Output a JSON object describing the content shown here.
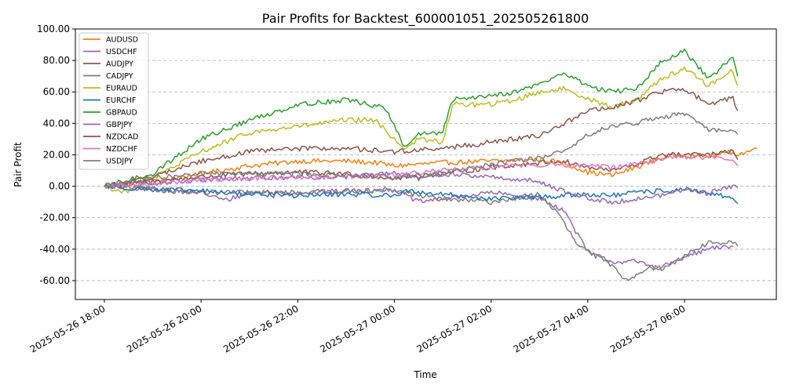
{
  "chart_data": {
    "type": "line",
    "title": "Pair Profits for Backtest_600001051_202505261800",
    "xlabel": "Time",
    "ylabel": "Pair Profit",
    "ylim": [
      -72,
      100
    ],
    "xlim_hours": [
      -0.6,
      13.9
    ],
    "grid": "horizontal dashed",
    "legend_position": "top-left",
    "y_ticks": [
      -60,
      -40,
      -20,
      0,
      20,
      40,
      60,
      80,
      100
    ],
    "y_tick_labels": [
      "-60.00",
      "-40.00",
      "-20.00",
      "0.00",
      "20.00",
      "40.00",
      "60.00",
      "80.00",
      "100.00"
    ],
    "x_ticks_hours": [
      0,
      2,
      4,
      6,
      8,
      10,
      12
    ],
    "x_tick_labels": [
      "2025-05-26 18:00",
      "2025-05-26 20:00",
      "2025-05-26 22:00",
      "2025-05-27 00:00",
      "2025-05-27 02:00",
      "2025-05-27 04:00",
      "2025-05-27 06:00"
    ],
    "x_unit": "hours since 2025-05-26 18:00",
    "series": [
      {
        "name": "AUDUSD",
        "color": "#ff7f0e",
        "points": [
          [
            0,
            0
          ],
          [
            1,
            3
          ],
          [
            2,
            8
          ],
          [
            3,
            13
          ],
          [
            4,
            16
          ],
          [
            5,
            16
          ],
          [
            5.6,
            15
          ],
          [
            6,
            13
          ],
          [
            7,
            15
          ],
          [
            8,
            16
          ],
          [
            9,
            17
          ],
          [
            9.5,
            15
          ],
          [
            10,
            9
          ],
          [
            10.5,
            7
          ],
          [
            11,
            12
          ],
          [
            11.5,
            18
          ],
          [
            12,
            20
          ],
          [
            12.5,
            19
          ],
          [
            13,
            22
          ],
          [
            13.5,
            24
          ],
          [
            13.1,
            20
          ]
        ]
      },
      {
        "name": "USDCHF",
        "color": "#9467bd",
        "points": [
          [
            0,
            0
          ],
          [
            1,
            -2
          ],
          [
            2,
            -4
          ],
          [
            2.5,
            -9
          ],
          [
            3,
            -4
          ],
          [
            4,
            -4
          ],
          [
            5,
            -3
          ],
          [
            6,
            -2
          ],
          [
            6.5,
            -10
          ],
          [
            7,
            -8
          ],
          [
            8,
            -4
          ],
          [
            9,
            -8
          ],
          [
            9.5,
            -15
          ],
          [
            10,
            -42
          ],
          [
            10.5,
            -48
          ],
          [
            11,
            -48
          ],
          [
            11.5,
            -52
          ],
          [
            12,
            -45
          ],
          [
            12.5,
            -40
          ],
          [
            13,
            -38
          ]
        ]
      },
      {
        "name": "AUDJPY",
        "color": "#8c564b",
        "points": [
          [
            0,
            0
          ],
          [
            1,
            3
          ],
          [
            2,
            6
          ],
          [
            3,
            8
          ],
          [
            4,
            9
          ],
          [
            5,
            8
          ],
          [
            6,
            5
          ],
          [
            7,
            8
          ],
          [
            8,
            12
          ],
          [
            9,
            15
          ],
          [
            9.5,
            16
          ],
          [
            10,
            12
          ],
          [
            10.5,
            10
          ],
          [
            11,
            14
          ],
          [
            11.5,
            20
          ],
          [
            12,
            20
          ],
          [
            12.5,
            20
          ],
          [
            13,
            22
          ],
          [
            13.1,
            17
          ]
        ]
      },
      {
        "name": "CADJPY",
        "color": "#7f7f7f",
        "points": [
          [
            0,
            0
          ],
          [
            1,
            -2
          ],
          [
            2,
            -4
          ],
          [
            3,
            -4
          ],
          [
            4,
            -4
          ],
          [
            5,
            -3
          ],
          [
            6,
            -3
          ],
          [
            7,
            -8
          ],
          [
            8,
            -10
          ],
          [
            9,
            -5
          ],
          [
            9.4,
            -18
          ],
          [
            9.8,
            -38
          ],
          [
            10.2,
            -45
          ],
          [
            10.5,
            -50
          ],
          [
            10.8,
            -60
          ],
          [
            11.2,
            -52
          ],
          [
            11.6,
            -52
          ],
          [
            12,
            -44
          ],
          [
            12.5,
            -36
          ],
          [
            13,
            -36
          ],
          [
            13.1,
            -38
          ]
        ]
      },
      {
        "name": "EURAUD",
        "color": "#bcbd22",
        "points": [
          [
            0,
            0
          ],
          [
            0.4,
            -4
          ],
          [
            1,
            5
          ],
          [
            2,
            22
          ],
          [
            3,
            34
          ],
          [
            4,
            38
          ],
          [
            5,
            42
          ],
          [
            5.6,
            42
          ],
          [
            6,
            30
          ],
          [
            6.2,
            24
          ],
          [
            6.5,
            30
          ],
          [
            7,
            28
          ],
          [
            7.2,
            52
          ],
          [
            8,
            52
          ],
          [
            8.5,
            55
          ],
          [
            9,
            60
          ],
          [
            9.5,
            62
          ],
          [
            10,
            56
          ],
          [
            10.5,
            50
          ],
          [
            11,
            55
          ],
          [
            11.5,
            68
          ],
          [
            12,
            75
          ],
          [
            12.5,
            64
          ],
          [
            13,
            74
          ],
          [
            13.1,
            64
          ]
        ]
      },
      {
        "name": "EURCHF",
        "color": "#1f77b4",
        "points": [
          [
            0,
            0
          ],
          [
            1,
            -2
          ],
          [
            2,
            -3
          ],
          [
            3,
            -5
          ],
          [
            4,
            -6
          ],
          [
            5,
            -5
          ],
          [
            6,
            -6
          ],
          [
            6.2,
            -3
          ],
          [
            7,
            -5
          ],
          [
            8,
            -8
          ],
          [
            9,
            -7
          ],
          [
            10,
            -5
          ],
          [
            10.5,
            -6
          ],
          [
            11,
            -4
          ],
          [
            11.5,
            -3
          ],
          [
            12,
            -2
          ],
          [
            12.5,
            -5
          ],
          [
            13,
            -7
          ],
          [
            13.1,
            -11
          ]
        ]
      },
      {
        "name": "GBPAUD",
        "color": "#2ca02c",
        "points": [
          [
            0,
            0
          ],
          [
            1,
            8
          ],
          [
            2,
            30
          ],
          [
            3,
            42
          ],
          [
            4,
            52
          ],
          [
            5,
            55
          ],
          [
            5.8,
            50
          ],
          [
            6,
            38
          ],
          [
            6.2,
            25
          ],
          [
            6.5,
            33
          ],
          [
            7,
            34
          ],
          [
            7.2,
            55
          ],
          [
            8,
            58
          ],
          [
            8.5,
            60
          ],
          [
            9,
            65
          ],
          [
            9.5,
            72
          ],
          [
            10,
            64
          ],
          [
            10.5,
            60
          ],
          [
            11,
            62
          ],
          [
            11.5,
            78
          ],
          [
            12,
            86
          ],
          [
            12.5,
            68
          ],
          [
            13,
            82
          ],
          [
            13.1,
            70
          ]
        ]
      },
      {
        "name": "GBPJPY",
        "color": "#9467bd",
        "points": [
          [
            0,
            0
          ],
          [
            1,
            2
          ],
          [
            2,
            4
          ],
          [
            3,
            5
          ],
          [
            4,
            6
          ],
          [
            5,
            6
          ],
          [
            6,
            8
          ],
          [
            6.5,
            5
          ],
          [
            7,
            8
          ],
          [
            8,
            6
          ],
          [
            9,
            3
          ],
          [
            9.5,
            -3
          ],
          [
            10,
            -8
          ],
          [
            10.5,
            -10
          ],
          [
            11,
            -8
          ],
          [
            11.5,
            -6
          ],
          [
            12,
            -2
          ],
          [
            12.5,
            -4
          ],
          [
            13,
            0
          ],
          [
            13.1,
            -1
          ]
        ]
      },
      {
        "name": "NZDCAD",
        "color": "#8c564b",
        "points": [
          [
            0,
            0
          ],
          [
            1,
            6
          ],
          [
            2,
            16
          ],
          [
            3,
            22
          ],
          [
            4,
            24
          ],
          [
            5,
            24
          ],
          [
            6,
            22
          ],
          [
            7,
            24
          ],
          [
            8,
            28
          ],
          [
            9,
            32
          ],
          [
            9.5,
            40
          ],
          [
            10,
            48
          ],
          [
            10.5,
            50
          ],
          [
            11,
            54
          ],
          [
            11.5,
            60
          ],
          [
            12,
            62
          ],
          [
            12.5,
            52
          ],
          [
            13,
            56
          ],
          [
            13.1,
            48
          ]
        ]
      },
      {
        "name": "NZDCHF",
        "color": "#e377c2",
        "points": [
          [
            0,
            0
          ],
          [
            1,
            2
          ],
          [
            2,
            4
          ],
          [
            3,
            5
          ],
          [
            4,
            6
          ],
          [
            5,
            6
          ],
          [
            6,
            7
          ],
          [
            7,
            10
          ],
          [
            8,
            12
          ],
          [
            9,
            14
          ],
          [
            10,
            13
          ],
          [
            10.5,
            12
          ],
          [
            11,
            14
          ],
          [
            11.5,
            17
          ],
          [
            12,
            19
          ],
          [
            12.5,
            18
          ],
          [
            13,
            18
          ],
          [
            13.1,
            13
          ]
        ]
      },
      {
        "name": "USDJPY",
        "color": "#7f7f7f",
        "points": [
          [
            0,
            0
          ],
          [
            1,
            5
          ],
          [
            2,
            8
          ],
          [
            3,
            8
          ],
          [
            4,
            8
          ],
          [
            5,
            7
          ],
          [
            6,
            6
          ],
          [
            7,
            8
          ],
          [
            8,
            14
          ],
          [
            9,
            18
          ],
          [
            9.5,
            22
          ],
          [
            10,
            33
          ],
          [
            10.5,
            38
          ],
          [
            11,
            40
          ],
          [
            11.5,
            44
          ],
          [
            12,
            46
          ],
          [
            12.5,
            36
          ],
          [
            13,
            36
          ],
          [
            13.1,
            33
          ]
        ]
      }
    ]
  }
}
